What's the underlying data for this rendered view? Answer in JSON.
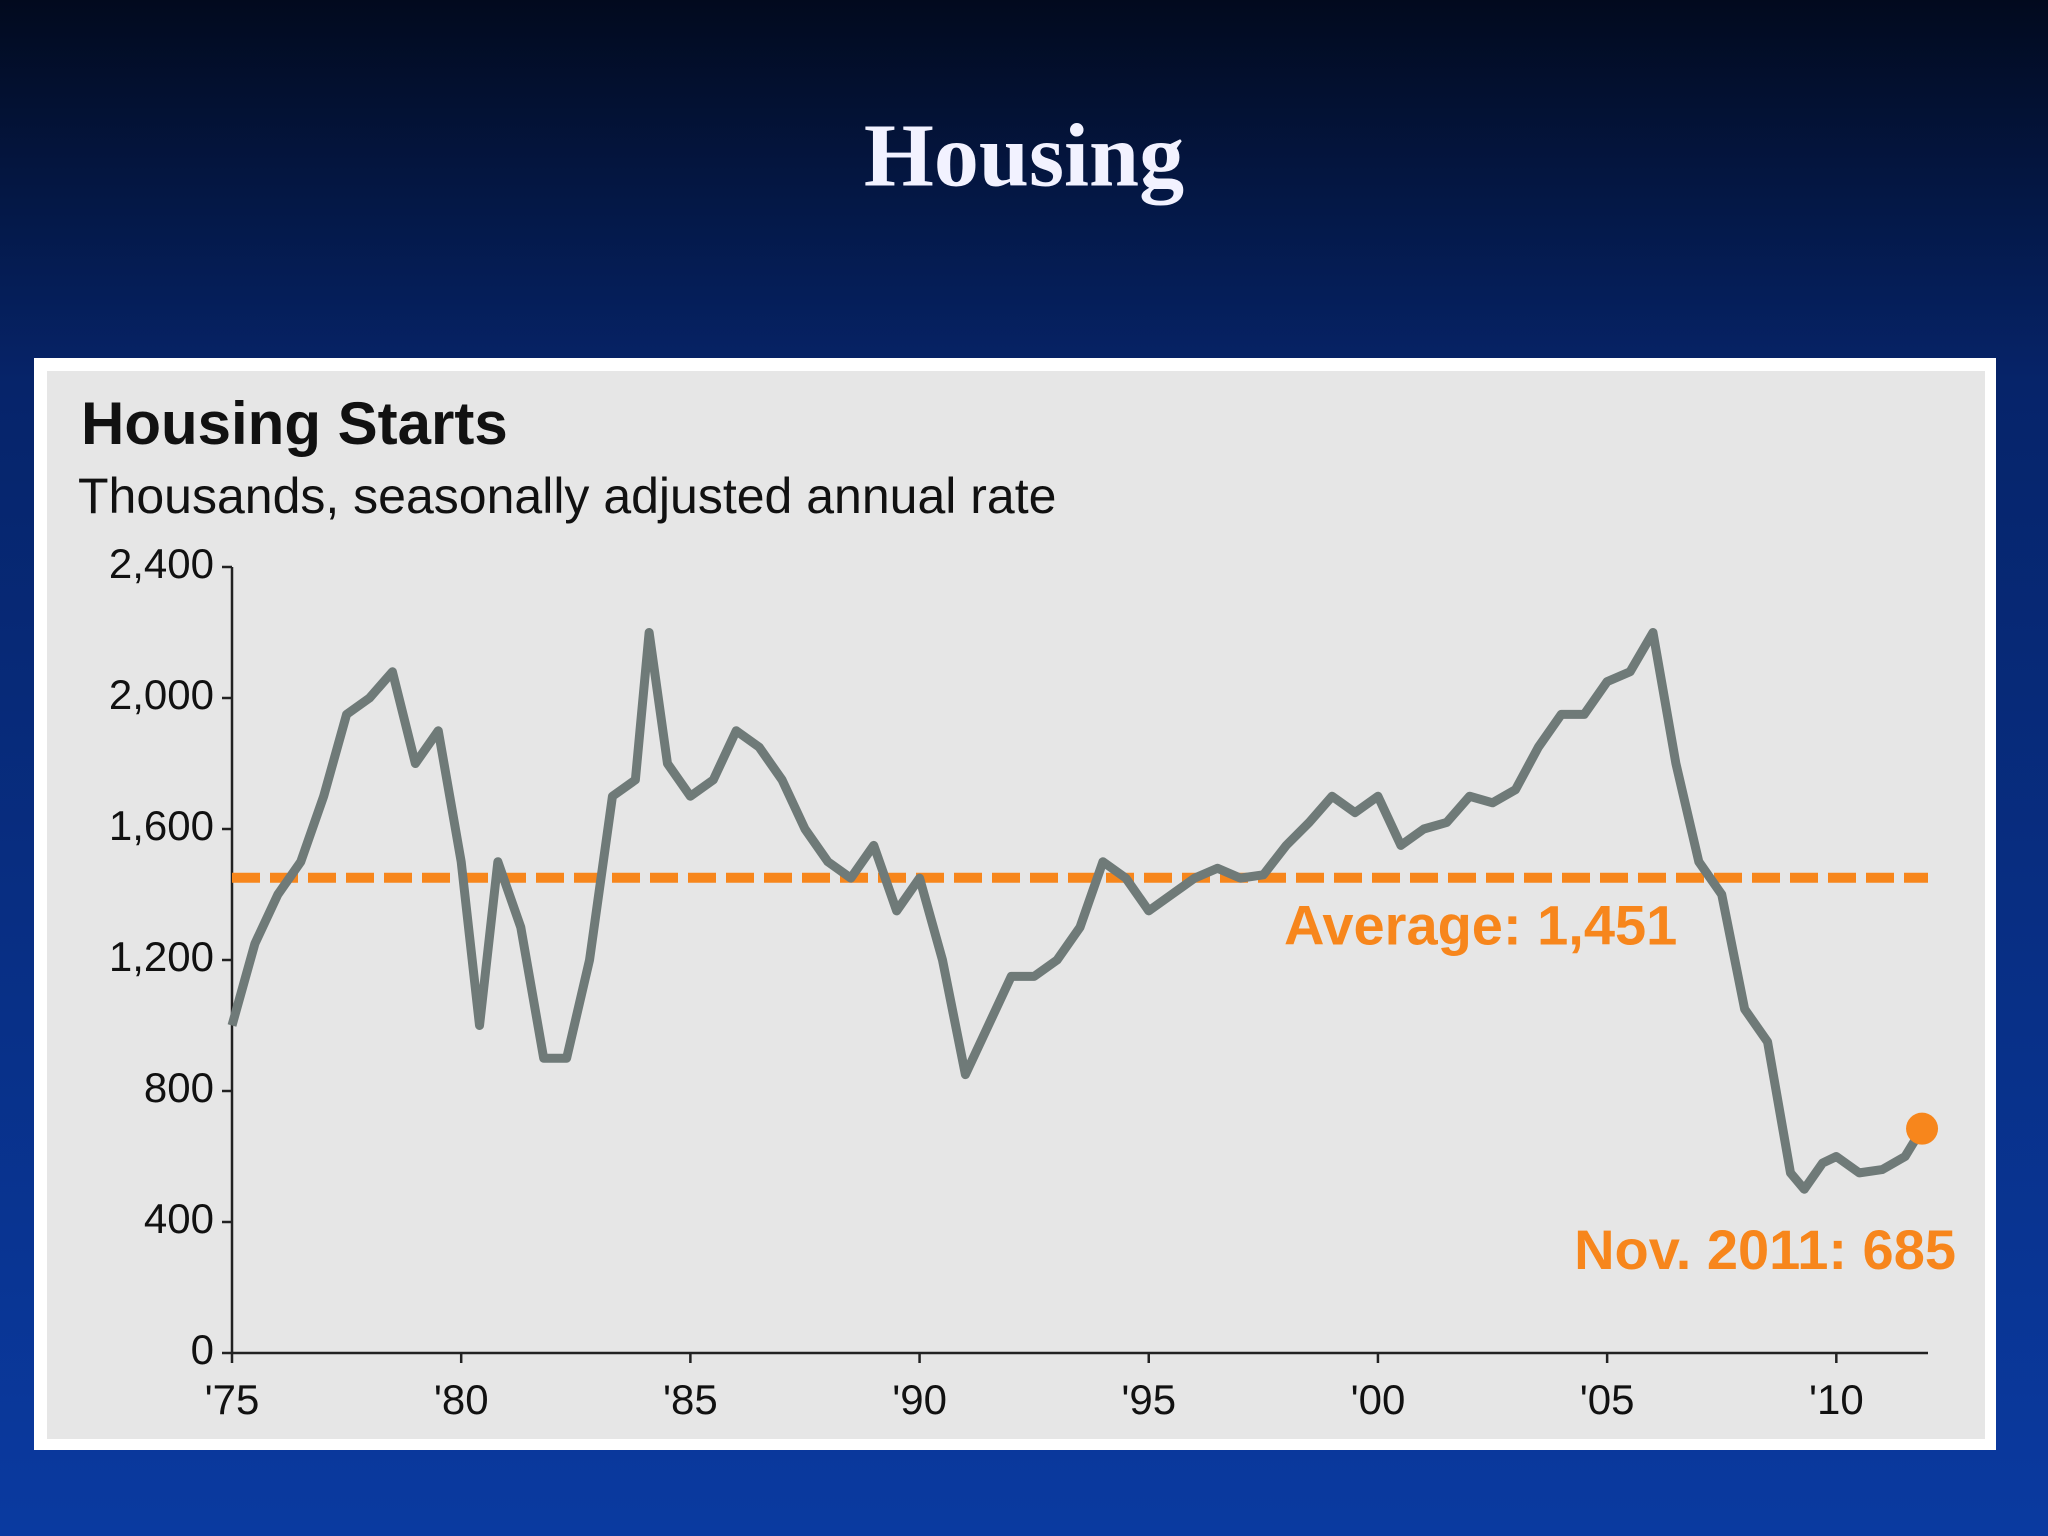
{
  "slide_title": "Housing",
  "chart_data": {
    "type": "line",
    "title": "Housing Starts",
    "subtitle": "Thousands, seasonally adjusted annual rate",
    "xlim": [
      1975,
      2012
    ],
    "xticks": [
      {
        "value": 1975,
        "label": "'75"
      },
      {
        "value": 1980,
        "label": "'80"
      },
      {
        "value": 1985,
        "label": "'85"
      },
      {
        "value": 1990,
        "label": "'90"
      },
      {
        "value": 1995,
        "label": "'95"
      },
      {
        "value": 2000,
        "label": "'00"
      },
      {
        "value": 2005,
        "label": "'05"
      },
      {
        "value": 2010,
        "label": "'10"
      }
    ],
    "ylim": [
      0,
      2400
    ],
    "yticks": [
      0,
      400,
      800,
      {
        "value": 1200,
        "label": "1,200"
      },
      {
        "value": 1600,
        "label": "1,600"
      },
      {
        "value": 2000,
        "label": "2,000"
      },
      {
        "value": 2400,
        "label": "2,400"
      }
    ],
    "x": [
      1975.0,
      1975.5,
      1976.0,
      1976.5,
      1977.0,
      1977.5,
      1978.0,
      1978.5,
      1979.0,
      1979.5,
      1980.0,
      1980.4,
      1980.8,
      1981.3,
      1981.8,
      1982.3,
      1982.8,
      1983.3,
      1983.8,
      1984.1,
      1984.5,
      1985.0,
      1985.5,
      1986.0,
      1986.5,
      1987.0,
      1987.5,
      1988.0,
      1988.5,
      1989.0,
      1989.5,
      1990.0,
      1990.5,
      1991.0,
      1991.5,
      1992.0,
      1992.5,
      1993.0,
      1993.5,
      1994.0,
      1994.5,
      1995.0,
      1995.5,
      1996.0,
      1996.5,
      1997.0,
      1997.5,
      1998.0,
      1998.5,
      1999.0,
      1999.5,
      2000.0,
      2000.5,
      2001.0,
      2001.5,
      2002.0,
      2002.5,
      2003.0,
      2003.5,
      2004.0,
      2004.5,
      2005.0,
      2005.5,
      2006.0,
      2006.5,
      2007.0,
      2007.5,
      2008.0,
      2008.5,
      2009.0,
      2009.3,
      2009.7,
      2010.0,
      2010.5,
      2011.0,
      2011.5,
      2011.87
    ],
    "series": [
      {
        "color": "#6f7a78",
        "values": [
          1000,
          1250,
          1400,
          1500,
          1700,
          1950,
          2000,
          2080,
          1800,
          1900,
          1500,
          1000,
          1500,
          1300,
          900,
          900,
          1200,
          1700,
          1750,
          2200,
          1800,
          1700,
          1750,
          1900,
          1850,
          1750,
          1600,
          1500,
          1450,
          1550,
          1350,
          1450,
          1200,
          850,
          1000,
          1150,
          1150,
          1200,
          1300,
          1500,
          1450,
          1350,
          1400,
          1450,
          1480,
          1450,
          1460,
          1550,
          1620,
          1700,
          1650,
          1700,
          1550,
          1600,
          1620,
          1700,
          1680,
          1720,
          1850,
          1950,
          1950,
          2050,
          2080,
          2200,
          1800,
          1500,
          1400,
          1050,
          950,
          550,
          500,
          580,
          600,
          550,
          560,
          600,
          685
        ]
      }
    ],
    "average": {
      "value": 1451,
      "label": "Average: 1,451",
      "color": "#f7861c"
    },
    "latest": {
      "value": 685,
      "label": "Nov. 2011: 685",
      "color": "#f7861c"
    }
  }
}
